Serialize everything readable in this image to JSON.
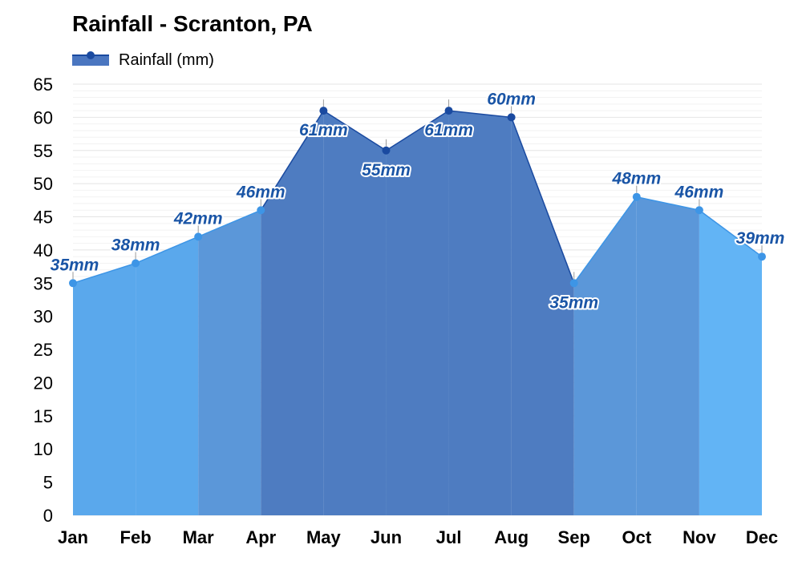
{
  "chart_data": {
    "type": "area",
    "title": "Rainfall - Scranton, PA",
    "legend": [
      "Rainfall (mm)"
    ],
    "legend_position": "top-left",
    "categories": [
      "Jan",
      "Feb",
      "Mar",
      "Apr",
      "May",
      "Jun",
      "Jul",
      "Aug",
      "Sep",
      "Oct",
      "Nov",
      "Dec"
    ],
    "series": [
      {
        "name": "Rainfall (mm)",
        "values": [
          35,
          38,
          42,
          46,
          61,
          55,
          61,
          60,
          35,
          48,
          46,
          39
        ]
      }
    ],
    "data_labels": [
      "35mm",
      "38mm",
      "42mm",
      "46mm",
      "61mm",
      "55mm",
      "61mm",
      "60mm",
      "35mm",
      "48mm",
      "46mm",
      "39mm"
    ],
    "yticks": [
      0,
      5,
      10,
      15,
      20,
      25,
      30,
      35,
      40,
      45,
      50,
      55,
      60,
      65
    ],
    "ylim": [
      0,
      65
    ],
    "xlabel": "",
    "ylabel": "",
    "grid": true,
    "colors": {
      "light_fill": "#5aa8ec",
      "medium_fill": "#5b97d9",
      "dark_fill": "#4e7cc1",
      "bright_fill": "#62b4f5",
      "dark_line": "#1a4aa0",
      "light_line": "#3d95e6",
      "label": "#1a55a6",
      "grid": "#e4e4e4"
    }
  }
}
